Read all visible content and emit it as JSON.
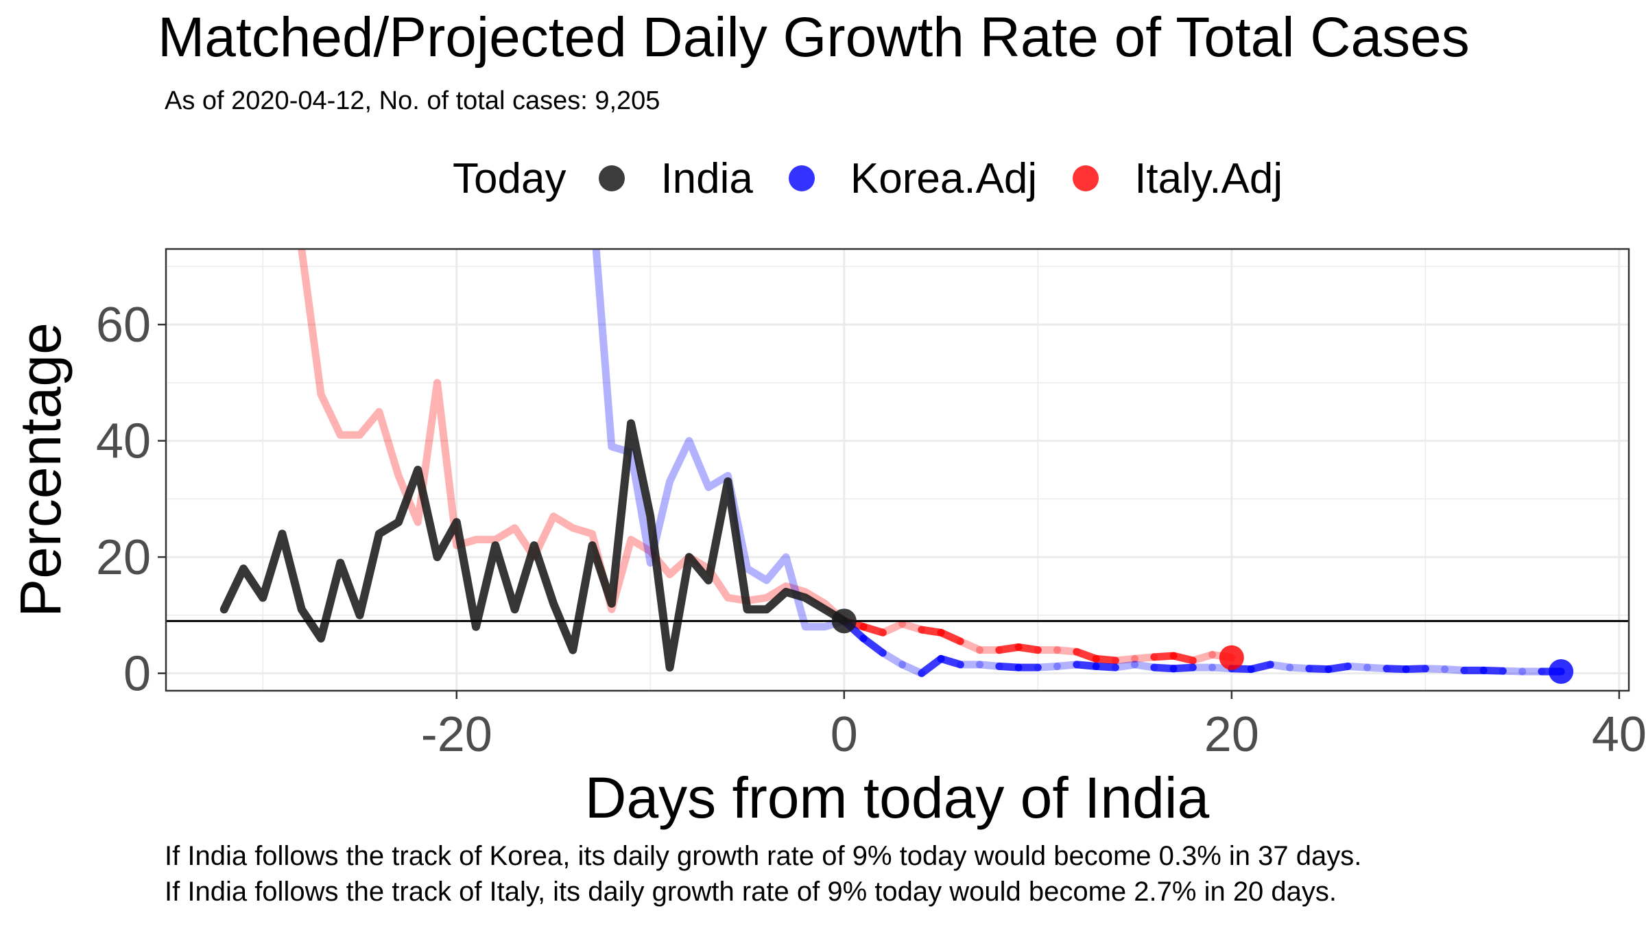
{
  "chart_data": {
    "type": "line",
    "title": "Matched/Projected Daily Growth Rate of Total Cases",
    "subtitle": "As of 2020-04-12, No. of total cases: 9,205",
    "xlabel": "Days from today of India",
    "ylabel": "Percentage",
    "xlim": [
      -35,
      40.5
    ],
    "ylim": [
      -3,
      73
    ],
    "xticks": [
      -20,
      0,
      20,
      40
    ],
    "yticks": [
      0,
      20,
      40,
      60
    ],
    "grid": true,
    "legend": {
      "position": "top",
      "title": "Today",
      "entries": [
        {
          "label": "India",
          "color": "#1a1a1a"
        },
        {
          "label": "Korea.Adj",
          "color": "#0000ff"
        },
        {
          "label": "Italy.Adj",
          "color": "#ff0000"
        }
      ]
    },
    "today_growth_rate": 9,
    "series": [
      {
        "name": "Italy.Adj",
        "color": "#ff0000",
        "x": [
          -28,
          -27,
          -26,
          -25,
          -24,
          -23,
          -22,
          -21,
          -20,
          -19,
          -18,
          -17,
          -16,
          -15,
          -14,
          -13,
          -12,
          -11,
          -10,
          -9,
          -8,
          -7,
          -6,
          -5,
          -4,
          -3,
          -2,
          -1,
          0,
          1,
          2,
          3,
          4,
          5,
          6,
          7,
          8,
          9,
          10,
          11,
          12,
          13,
          14,
          15,
          16,
          17,
          18,
          19,
          20
        ],
        "y": [
          73,
          48,
          41,
          41,
          45,
          34,
          26,
          50,
          22,
          23,
          23,
          25,
          20,
          27,
          25,
          24,
          11,
          23,
          21,
          17,
          20,
          18,
          13,
          12.5,
          13,
          15,
          14,
          12,
          9,
          8,
          7,
          8.5,
          7.5,
          7,
          5.5,
          4,
          4,
          4.5,
          4,
          4,
          3.7,
          2.5,
          2.2,
          2.5,
          2.8,
          3,
          2.2,
          3.2,
          2.7
        ],
        "projected_from": 0
      },
      {
        "name": "Korea.Adj",
        "color": "#0000ff",
        "x": [
          -12.8,
          -12,
          -11,
          -10,
          -9,
          -8,
          -7,
          -6,
          -5,
          -4,
          -3,
          -2,
          -1,
          0,
          1,
          2,
          3,
          4,
          5,
          6,
          7,
          8,
          9,
          10,
          11,
          12,
          13,
          14,
          15,
          16,
          17,
          18,
          19,
          20,
          21,
          22,
          23,
          24,
          25,
          26,
          27,
          28,
          29,
          30,
          31,
          32,
          33,
          34,
          35,
          36,
          37
        ],
        "y": [
          73,
          39,
          38,
          19,
          33,
          40,
          32,
          34,
          18,
          16,
          20,
          8,
          8,
          9,
          6,
          3.5,
          1.5,
          0,
          2.5,
          1.5,
          1.5,
          1.2,
          1,
          1,
          1.2,
          1.5,
          1.2,
          1,
          1.5,
          1,
          0.8,
          1,
          1,
          0.8,
          0.7,
          1.5,
          1,
          0.8,
          0.7,
          1.2,
          1,
          0.8,
          0.7,
          0.8,
          0.7,
          0.5,
          0.5,
          0.4,
          0.3,
          0.3,
          0.3
        ],
        "projected_from": 0
      },
      {
        "name": "India",
        "color": "#1a1a1a",
        "x": [
          -32,
          -31,
          -30,
          -29,
          -28,
          -27,
          -26,
          -25,
          -24,
          -23,
          -22,
          -21,
          -20,
          -19,
          -18,
          -17,
          -16,
          -15,
          -14,
          -13,
          -12,
          -11,
          -10,
          -9,
          -8,
          -7,
          -6,
          -5,
          -4,
          -3,
          -2,
          -1,
          0
        ],
        "y": [
          11,
          18,
          13,
          24,
          11,
          6,
          19,
          10,
          24,
          26,
          35,
          20,
          26,
          8,
          22,
          11,
          22,
          12,
          4,
          22,
          12,
          43,
          27,
          1,
          20,
          16,
          33,
          11,
          11,
          14,
          13,
          11,
          9
        ]
      }
    ],
    "caption_lines": [
      "If India follows the track of Korea, its daily growth rate of 9% today would become 0.3% in 37 days.",
      "If India follows the track of Italy, its daily growth rate of 9% today would become 2.7% in 20 days."
    ]
  }
}
